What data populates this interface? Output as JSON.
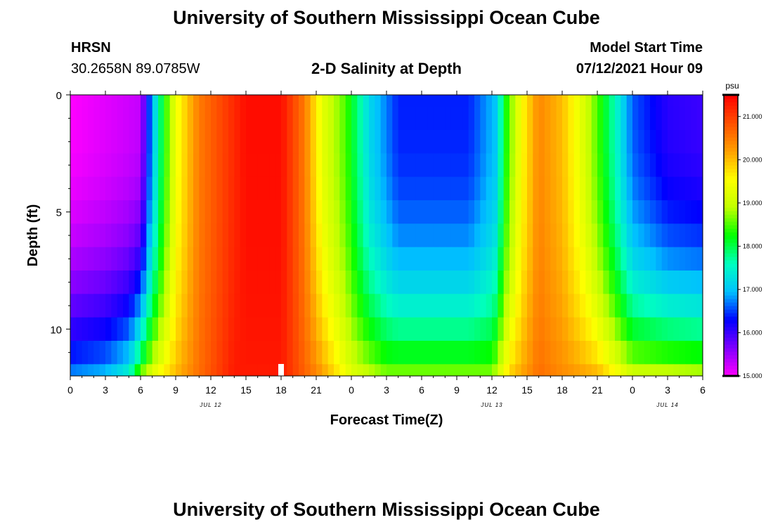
{
  "header": {
    "title_top": "University of Southern Mississippi Ocean Cube",
    "title_bottom": "University of Southern Mississippi Ocean Cube",
    "station": "HRSN",
    "coords": "30.2658N  89.0785W",
    "subtitle": "2-D Salinity at Depth",
    "model_label": "Model Start Time",
    "model_time": "07/12/2021 Hour 09"
  },
  "colors": {
    "palette": [
      "#ff00ff",
      "#8000ff",
      "#0000ff",
      "#00c0ff",
      "#00ffc0",
      "#00ff00",
      "#c0ff00",
      "#ffff00",
      "#ffa000",
      "#ff5000",
      "#ff0000"
    ],
    "marker": "#ffffff"
  },
  "chart_data": {
    "type": "heatmap",
    "title": "2-D Salinity at Depth",
    "xlabel": "Forecast Time(Z)",
    "ylabel": "Depth (ft)",
    "x_ticks": [
      "0",
      "3",
      "6",
      "9",
      "12",
      "15",
      "18",
      "21",
      "0",
      "3",
      "6",
      "9",
      "12",
      "15",
      "18",
      "21",
      "0",
      "3",
      "6"
    ],
    "day_labels": [
      {
        "label": "JUL 12",
        "hour": 12
      },
      {
        "label": "JUL 13",
        "hour": 36
      },
      {
        "label": "JUL 14",
        "hour": 51
      }
    ],
    "x_range_hours": [
      0,
      54
    ],
    "y_ticks": [
      "0",
      "5",
      "10"
    ],
    "y_range_ft": [
      0,
      12
    ],
    "depth_levels_ft": [
      0,
      1,
      2,
      3,
      4,
      5,
      6,
      7,
      8,
      9,
      10,
      11,
      12
    ],
    "colorbar": {
      "unit": "psu",
      "range": [
        15.0,
        21.5
      ],
      "tick_labels": [
        "21.000",
        "20.000",
        "19.000",
        "18.000",
        "17.000",
        "16.000",
        "15.000"
      ],
      "tick_values": [
        21,
        20,
        19,
        18,
        17,
        16,
        15
      ]
    },
    "marker_hour": 18,
    "surface_profile": [
      {
        "hour": 0,
        "value": 15.0
      },
      {
        "hour": 6,
        "value": 15.3
      },
      {
        "hour": 6.8,
        "value": 16.6
      },
      {
        "hour": 7.8,
        "value": 18.0
      },
      {
        "hour": 9,
        "value": 19.4
      },
      {
        "hour": 11,
        "value": 20.5
      },
      {
        "hour": 15,
        "value": 21.4
      },
      {
        "hour": 18,
        "value": 21.4
      },
      {
        "hour": 20,
        "value": 20.5
      },
      {
        "hour": 21.5,
        "value": 19.3
      },
      {
        "hour": 23.5,
        "value": 18.5
      },
      {
        "hour": 25.5,
        "value": 17.2
      },
      {
        "hour": 28,
        "value": 16.4
      },
      {
        "hour": 34,
        "value": 16.4
      },
      {
        "hour": 36.3,
        "value": 17.0
      },
      {
        "hour": 37.2,
        "value": 18.3
      },
      {
        "hour": 38.5,
        "value": 19.5
      },
      {
        "hour": 40,
        "value": 20.4
      },
      {
        "hour": 42,
        "value": 20.0
      },
      {
        "hour": 44,
        "value": 19.1
      },
      {
        "hour": 46.5,
        "value": 17.6
      },
      {
        "hour": 48,
        "value": 16.6
      },
      {
        "hour": 51,
        "value": 16.1
      },
      {
        "hour": 54,
        "value": 16.0
      }
    ],
    "bottom_profile": [
      {
        "hour": 0,
        "value": 16.7
      },
      {
        "hour": 3,
        "value": 16.9
      },
      {
        "hour": 5,
        "value": 17.4
      },
      {
        "hour": 6,
        "value": 18.5
      },
      {
        "hour": 7,
        "value": 19.2
      },
      {
        "hour": 9,
        "value": 20.0
      },
      {
        "hour": 11,
        "value": 20.6
      },
      {
        "hour": 14,
        "value": 21.3
      },
      {
        "hour": 18,
        "value": 21.3
      },
      {
        "hour": 21,
        "value": 20.4
      },
      {
        "hour": 24,
        "value": 19.2
      },
      {
        "hour": 27,
        "value": 18.6
      },
      {
        "hour": 36,
        "value": 18.6
      },
      {
        "hour": 37.5,
        "value": 19.8
      },
      {
        "hour": 40,
        "value": 20.6
      },
      {
        "hour": 45,
        "value": 20.0
      },
      {
        "hour": 48,
        "value": 19.0
      },
      {
        "hour": 54,
        "value": 18.8
      }
    ]
  }
}
